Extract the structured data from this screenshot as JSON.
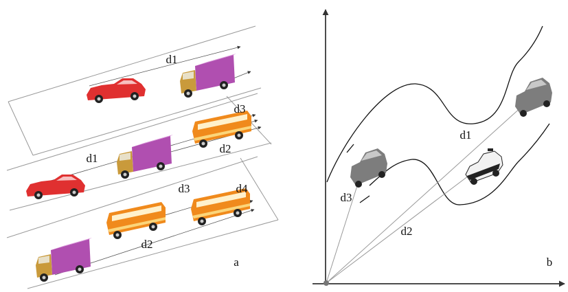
{
  "panel_a": {
    "caption": "a",
    "labels": [
      "d1",
      "d3",
      "d1",
      "d2",
      "d3",
      "d4",
      "d2"
    ]
  },
  "panel_b": {
    "caption": "b",
    "labels": [
      "d1",
      "d3",
      "d2"
    ]
  }
}
